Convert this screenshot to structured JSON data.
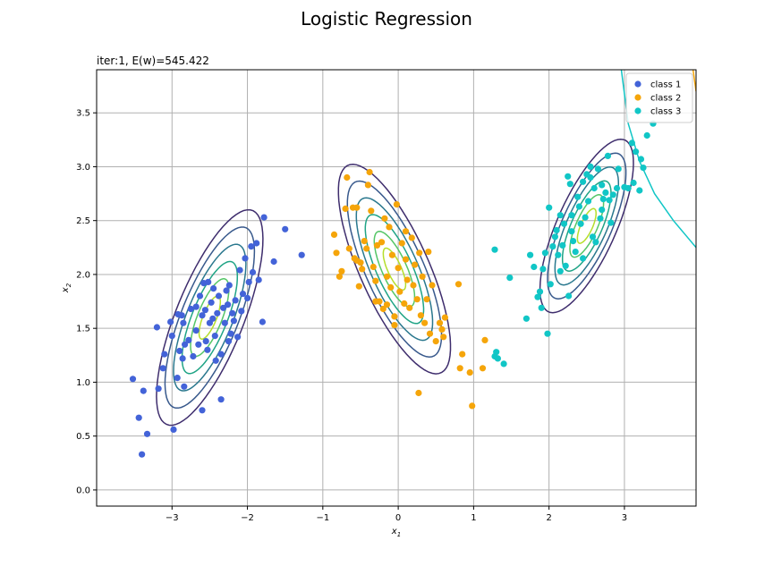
{
  "figure": {
    "suptitle": "Logistic Regression"
  },
  "chart_data": {
    "type": "scatter",
    "title": "iter:1, E(w)=545.422",
    "xlabel": "x",
    "xlabel_sub": "1",
    "ylabel": "x",
    "ylabel_sub": "2",
    "xlim": [
      -4.0,
      3.95
    ],
    "ylim": [
      -0.15,
      3.9
    ],
    "xticks": [
      -3,
      -2,
      -1,
      0,
      1,
      2,
      3
    ],
    "xtick_labels": [
      "−3",
      "−2",
      "−1",
      "0",
      "1",
      "2",
      "3"
    ],
    "yticks": [
      0.0,
      0.5,
      1.0,
      1.5,
      2.0,
      2.5,
      3.0,
      3.5
    ],
    "ytick_labels": [
      "0.0",
      "0.5",
      "1.0",
      "1.5",
      "2.0",
      "2.5",
      "3.0",
      "3.5"
    ],
    "grid": true,
    "legend_position": "top-right",
    "series": [
      {
        "name": "class 1",
        "color": "#4363d8",
        "points": [
          [
            -3.52,
            1.03
          ],
          [
            -3.44,
            0.67
          ],
          [
            -3.4,
            0.33
          ],
          [
            -3.38,
            0.92
          ],
          [
            -3.33,
            0.52
          ],
          [
            -3.2,
            1.51
          ],
          [
            -3.18,
            0.94
          ],
          [
            -3.12,
            1.13
          ],
          [
            -3.1,
            1.26
          ],
          [
            -3.02,
            1.56
          ],
          [
            -3.0,
            1.43
          ],
          [
            -2.98,
            0.56
          ],
          [
            -2.93,
            1.04
          ],
          [
            -2.92,
            1.63
          ],
          [
            -2.9,
            1.29
          ],
          [
            -2.87,
            1.62
          ],
          [
            -2.86,
            1.22
          ],
          [
            -2.85,
            1.55
          ],
          [
            -2.84,
            0.96
          ],
          [
            -2.83,
            1.35
          ],
          [
            -2.78,
            1.39
          ],
          [
            -2.75,
            1.68
          ],
          [
            -2.72,
            1.24
          ],
          [
            -2.68,
            1.48
          ],
          [
            -2.65,
            1.35
          ],
          [
            -2.63,
            1.8
          ],
          [
            -2.6,
            1.62
          ],
          [
            -2.6,
            0.74
          ],
          [
            -2.58,
            1.92
          ],
          [
            -2.56,
            1.67
          ],
          [
            -2.55,
            1.38
          ],
          [
            -2.52,
            1.93
          ],
          [
            -2.5,
            1.55
          ],
          [
            -2.48,
            1.74
          ],
          [
            -2.46,
            1.59
          ],
          [
            -2.45,
            1.87
          ],
          [
            -2.43,
            1.43
          ],
          [
            -2.4,
            1.64
          ],
          [
            -2.38,
            1.8
          ],
          [
            -2.35,
            1.26
          ],
          [
            -2.32,
            1.69
          ],
          [
            -2.3,
            1.55
          ],
          [
            -2.28,
            1.85
          ],
          [
            -2.26,
            1.72
          ],
          [
            -2.24,
            1.9
          ],
          [
            -2.22,
            1.45
          ],
          [
            -2.2,
            1.64
          ],
          [
            -2.18,
            1.57
          ],
          [
            -2.16,
            1.76
          ],
          [
            -2.13,
            1.42
          ],
          [
            -2.1,
            2.04
          ],
          [
            -2.08,
            1.66
          ],
          [
            -2.06,
            1.82
          ],
          [
            -2.03,
            2.15
          ],
          [
            -2.0,
            1.78
          ],
          [
            -1.98,
            1.93
          ],
          [
            -1.95,
            2.26
          ],
          [
            -1.93,
            2.02
          ],
          [
            -1.88,
            2.29
          ],
          [
            -1.85,
            1.95
          ],
          [
            -1.8,
            1.56
          ],
          [
            -1.78,
            2.53
          ],
          [
            -1.65,
            2.12
          ],
          [
            -1.5,
            2.42
          ],
          [
            -1.28,
            2.18
          ],
          [
            -2.35,
            0.84
          ],
          [
            -2.42,
            1.2
          ],
          [
            -2.68,
            1.7
          ],
          [
            -2.25,
            1.38
          ],
          [
            -2.53,
            1.3
          ]
        ]
      },
      {
        "name": "class 2",
        "color": "#f5a50a",
        "points": [
          [
            -0.85,
            2.37
          ],
          [
            -0.82,
            2.2
          ],
          [
            -0.78,
            1.98
          ],
          [
            -0.75,
            2.03
          ],
          [
            -0.7,
            2.61
          ],
          [
            -0.68,
            2.9
          ],
          [
            -0.65,
            2.24
          ],
          [
            -0.6,
            2.62
          ],
          [
            -0.58,
            2.15
          ],
          [
            -0.55,
            2.62
          ],
          [
            -0.52,
            1.89
          ],
          [
            -0.5,
            2.11
          ],
          [
            -0.48,
            2.05
          ],
          [
            -0.45,
            2.31
          ],
          [
            -0.42,
            2.24
          ],
          [
            -0.4,
            2.83
          ],
          [
            -0.38,
            2.95
          ],
          [
            -0.36,
            2.59
          ],
          [
            -0.33,
            2.07
          ],
          [
            -0.3,
            1.94
          ],
          [
            -0.28,
            2.27
          ],
          [
            -0.25,
            1.75
          ],
          [
            -0.22,
            2.3
          ],
          [
            -0.2,
            1.68
          ],
          [
            -0.18,
            2.52
          ],
          [
            -0.15,
            1.98
          ],
          [
            -0.12,
            2.44
          ],
          [
            -0.1,
            1.88
          ],
          [
            -0.08,
            2.18
          ],
          [
            -0.05,
            1.61
          ],
          [
            -0.02,
            2.65
          ],
          [
            0.0,
            2.06
          ],
          [
            0.02,
            1.84
          ],
          [
            0.05,
            2.29
          ],
          [
            0.08,
            1.73
          ],
          [
            0.1,
            2.14
          ],
          [
            0.12,
            1.95
          ],
          [
            0.15,
            1.69
          ],
          [
            0.18,
            2.34
          ],
          [
            0.2,
            1.9
          ],
          [
            0.22,
            2.09
          ],
          [
            0.25,
            1.77
          ],
          [
            0.28,
            2.2
          ],
          [
            0.3,
            1.62
          ],
          [
            0.32,
            1.98
          ],
          [
            0.35,
            1.55
          ],
          [
            0.38,
            1.77
          ],
          [
            0.4,
            2.21
          ],
          [
            0.45,
            1.9
          ],
          [
            0.5,
            1.38
          ],
          [
            0.55,
            1.55
          ],
          [
            0.58,
            1.49
          ],
          [
            0.6,
            1.42
          ],
          [
            0.62,
            1.6
          ],
          [
            0.8,
            1.91
          ],
          [
            0.82,
            1.13
          ],
          [
            0.85,
            1.26
          ],
          [
            0.95,
            1.09
          ],
          [
            0.98,
            0.78
          ],
          [
            1.12,
            1.13
          ],
          [
            1.15,
            1.39
          ],
          [
            0.27,
            0.9
          ],
          [
            -0.05,
            1.53
          ],
          [
            -0.3,
            1.75
          ],
          [
            -0.55,
            2.13
          ],
          [
            0.42,
            1.45
          ],
          [
            -0.15,
            1.72
          ],
          [
            0.1,
            2.4
          ]
        ]
      },
      {
        "name": "class 3",
        "color": "#11c6c6",
        "points": [
          [
            1.28,
            2.23
          ],
          [
            1.28,
            1.24
          ],
          [
            1.3,
            1.28
          ],
          [
            1.32,
            1.22
          ],
          [
            1.4,
            1.17
          ],
          [
            1.48,
            1.97
          ],
          [
            1.7,
            1.59
          ],
          [
            1.75,
            2.18
          ],
          [
            1.8,
            2.07
          ],
          [
            1.85,
            1.79
          ],
          [
            1.88,
            1.84
          ],
          [
            1.9,
            1.69
          ],
          [
            1.92,
            2.05
          ],
          [
            1.95,
            2.2
          ],
          [
            1.98,
            1.45
          ],
          [
            2.0,
            2.62
          ],
          [
            2.02,
            1.91
          ],
          [
            2.05,
            2.26
          ],
          [
            2.08,
            2.35
          ],
          [
            2.1,
            2.41
          ],
          [
            2.12,
            2.18
          ],
          [
            2.15,
            2.03
          ],
          [
            2.18,
            2.27
          ],
          [
            2.2,
            2.47
          ],
          [
            2.22,
            2.08
          ],
          [
            2.25,
            2.91
          ],
          [
            2.26,
            1.8
          ],
          [
            2.28,
            2.84
          ],
          [
            2.3,
            2.55
          ],
          [
            2.32,
            2.31
          ],
          [
            2.35,
            2.21
          ],
          [
            2.38,
            2.72
          ],
          [
            2.4,
            2.63
          ],
          [
            2.42,
            2.47
          ],
          [
            2.45,
            2.86
          ],
          [
            2.48,
            2.53
          ],
          [
            2.5,
            2.93
          ],
          [
            2.52,
            2.68
          ],
          [
            2.55,
            3.0
          ],
          [
            2.58,
            2.35
          ],
          [
            2.6,
            2.8
          ],
          [
            2.62,
            2.3
          ],
          [
            2.65,
            2.98
          ],
          [
            2.68,
            2.52
          ],
          [
            2.7,
            2.83
          ],
          [
            2.72,
            2.7
          ],
          [
            2.75,
            2.76
          ],
          [
            2.78,
            3.1
          ],
          [
            2.8,
            2.69
          ],
          [
            2.82,
            2.48
          ],
          [
            2.85,
            2.74
          ],
          [
            2.9,
            2.8
          ],
          [
            2.92,
            2.98
          ],
          [
            3.0,
            2.81
          ],
          [
            3.05,
            2.8
          ],
          [
            3.1,
            3.22
          ],
          [
            3.12,
            2.85
          ],
          [
            3.15,
            3.14
          ],
          [
            3.2,
            2.78
          ],
          [
            3.22,
            3.07
          ],
          [
            3.25,
            2.99
          ],
          [
            3.3,
            3.29
          ],
          [
            3.38,
            3.4
          ],
          [
            2.55,
            2.9
          ],
          [
            2.3,
            2.4
          ],
          [
            2.15,
            2.55
          ],
          [
            2.45,
            2.15
          ],
          [
            2.7,
            2.6
          ]
        ]
      }
    ],
    "density_contours": [
      {
        "cx": -2.5,
        "cy": 1.6,
        "rx_outer": 1.15,
        "ry_outer": 0.42,
        "angle_deg": 58
      },
      {
        "cx": -0.05,
        "cy": 2.05,
        "rx_outer": 1.15,
        "ry_outer": 0.42,
        "angle_deg": -55
      },
      {
        "cx": 2.5,
        "cy": 2.45,
        "rx_outer": 0.95,
        "ry_outer": 0.36,
        "angle_deg": 55
      }
    ],
    "contour_colors": [
      "#3e2d6d",
      "#38598c",
      "#2a788e",
      "#20a486",
      "#55c667",
      "#b5de2b"
    ],
    "boundaries": [
      {
        "color": "#11c6c6",
        "points": [
          [
            2.95,
            3.95
          ],
          [
            3.05,
            3.4
          ],
          [
            3.2,
            3.05
          ],
          [
            3.4,
            2.75
          ],
          [
            3.65,
            2.5
          ],
          [
            3.95,
            2.25
          ]
        ]
      },
      {
        "color": "#f5a50a",
        "points": [
          [
            3.9,
            3.95
          ],
          [
            3.95,
            3.7
          ]
        ]
      }
    ]
  }
}
